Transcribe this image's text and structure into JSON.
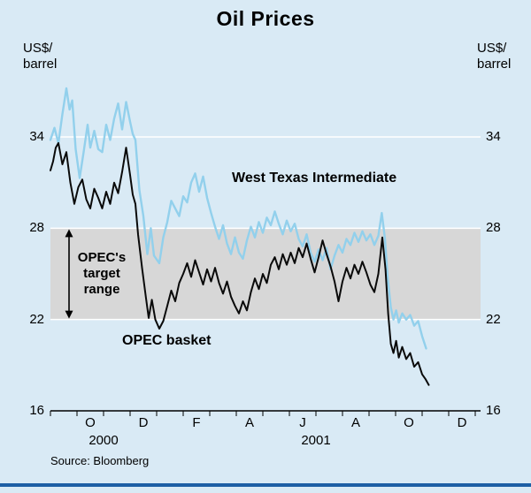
{
  "page": {
    "title": "Oil Prices",
    "axis_unit_lines": [
      "US$/",
      "barrel"
    ],
    "source": "Source: Bloomberg"
  },
  "annotations": {
    "wti": "West Texas Intermediate",
    "opec_basket": "OPEC basket",
    "target_range_lines": [
      "OPEC's",
      "target",
      "range"
    ]
  },
  "colors": {
    "background": "#d9eaf5",
    "band": "#d7d7d7",
    "gridline": "#ffffff",
    "axis": "#000000",
    "wti_line": "#92d0ec",
    "opec_line": "#0a0a0a",
    "bottom_bar": "#1d5fa5"
  },
  "chart_data": {
    "type": "line",
    "title": "Oil Prices",
    "ylabel": "US$/barrel",
    "ylim": [
      16,
      39.4
    ],
    "yticks": [
      16,
      22,
      28,
      34
    ],
    "grid": "horizontal",
    "band": {
      "label": "OPEC's target range",
      "from": 22,
      "to": 28
    },
    "x_axis": {
      "note": "months, 0 = Sep 2000",
      "range": [
        0,
        16.2
      ],
      "month_tick_every": 1,
      "tick_labels": [
        {
          "label": "O",
          "t": 1.5
        },
        {
          "label": "D",
          "t": 3.5
        },
        {
          "label": "F",
          "t": 5.5
        },
        {
          "label": "A",
          "t": 7.5
        },
        {
          "label": "J",
          "t": 9.5
        },
        {
          "label": "A",
          "t": 11.5
        },
        {
          "label": "O",
          "t": 13.5
        },
        {
          "label": "D",
          "t": 15.5
        }
      ],
      "year_labels": [
        {
          "label": "2000",
          "t": 2.0
        },
        {
          "label": "2001",
          "t": 10.0
        }
      ]
    },
    "target_range_arrow": {
      "t": 0.7,
      "from": 22,
      "to": 28
    },
    "series": [
      {
        "name": "West Texas Intermediate",
        "slug": "wti-line",
        "color_key": "wti_line",
        "width": 2.4,
        "points": [
          [
            0.0,
            33.8
          ],
          [
            0.15,
            34.6
          ],
          [
            0.3,
            33.6
          ],
          [
            0.45,
            35.5
          ],
          [
            0.6,
            37.2
          ],
          [
            0.72,
            35.8
          ],
          [
            0.82,
            36.4
          ],
          [
            0.95,
            33.2
          ],
          [
            1.1,
            31.3
          ],
          [
            1.25,
            33.0
          ],
          [
            1.4,
            34.8
          ],
          [
            1.5,
            33.3
          ],
          [
            1.65,
            34.4
          ],
          [
            1.8,
            33.2
          ],
          [
            1.95,
            33.0
          ],
          [
            2.1,
            34.8
          ],
          [
            2.25,
            33.8
          ],
          [
            2.4,
            35.2
          ],
          [
            2.55,
            36.2
          ],
          [
            2.7,
            34.5
          ],
          [
            2.85,
            36.3
          ],
          [
            3.0,
            35.0
          ],
          [
            3.1,
            34.2
          ],
          [
            3.2,
            33.8
          ],
          [
            3.35,
            30.5
          ],
          [
            3.5,
            28.8
          ],
          [
            3.65,
            26.3
          ],
          [
            3.78,
            28.0
          ],
          [
            3.9,
            26.2
          ],
          [
            4.1,
            25.7
          ],
          [
            4.25,
            27.4
          ],
          [
            4.4,
            28.4
          ],
          [
            4.55,
            29.8
          ],
          [
            4.7,
            29.3
          ],
          [
            4.85,
            28.8
          ],
          [
            5.0,
            30.1
          ],
          [
            5.15,
            29.7
          ],
          [
            5.3,
            31.0
          ],
          [
            5.45,
            31.6
          ],
          [
            5.6,
            30.4
          ],
          [
            5.75,
            31.4
          ],
          [
            5.9,
            30.0
          ],
          [
            6.05,
            29.0
          ],
          [
            6.2,
            28.1
          ],
          [
            6.35,
            27.3
          ],
          [
            6.5,
            28.2
          ],
          [
            6.65,
            27.0
          ],
          [
            6.8,
            26.3
          ],
          [
            6.95,
            27.4
          ],
          [
            7.1,
            26.4
          ],
          [
            7.25,
            26.0
          ],
          [
            7.4,
            27.2
          ],
          [
            7.55,
            28.1
          ],
          [
            7.7,
            27.4
          ],
          [
            7.85,
            28.4
          ],
          [
            8.0,
            27.7
          ],
          [
            8.15,
            28.7
          ],
          [
            8.3,
            28.2
          ],
          [
            8.45,
            29.1
          ],
          [
            8.6,
            28.3
          ],
          [
            8.75,
            27.6
          ],
          [
            8.9,
            28.5
          ],
          [
            9.05,
            27.8
          ],
          [
            9.2,
            28.3
          ],
          [
            9.35,
            27.3
          ],
          [
            9.5,
            26.8
          ],
          [
            9.65,
            27.6
          ],
          [
            9.8,
            26.4
          ],
          [
            9.95,
            25.8
          ],
          [
            10.1,
            26.6
          ],
          [
            10.25,
            25.9
          ],
          [
            10.4,
            26.7
          ],
          [
            10.55,
            25.3
          ],
          [
            10.7,
            26.2
          ],
          [
            10.85,
            26.9
          ],
          [
            11.0,
            26.4
          ],
          [
            11.15,
            27.3
          ],
          [
            11.3,
            26.9
          ],
          [
            11.45,
            27.7
          ],
          [
            11.6,
            27.1
          ],
          [
            11.75,
            27.8
          ],
          [
            11.9,
            27.2
          ],
          [
            12.05,
            27.6
          ],
          [
            12.2,
            26.9
          ],
          [
            12.35,
            27.5
          ],
          [
            12.48,
            29.0
          ],
          [
            12.6,
            27.3
          ],
          [
            12.7,
            24.8
          ],
          [
            12.82,
            22.8
          ],
          [
            12.92,
            22.0
          ],
          [
            13.02,
            22.6
          ],
          [
            13.12,
            21.8
          ],
          [
            13.25,
            22.4
          ],
          [
            13.4,
            22.0
          ],
          [
            13.55,
            22.3
          ],
          [
            13.7,
            21.6
          ],
          [
            13.85,
            21.9
          ],
          [
            14.0,
            20.9
          ],
          [
            14.15,
            20.1
          ]
        ]
      },
      {
        "name": "OPEC basket",
        "slug": "opec-basket-line",
        "color_key": "opec_line",
        "width": 2.0,
        "points": [
          [
            0.0,
            31.8
          ],
          [
            0.1,
            32.4
          ],
          [
            0.2,
            33.3
          ],
          [
            0.3,
            33.6
          ],
          [
            0.45,
            32.2
          ],
          [
            0.6,
            33.0
          ],
          [
            0.75,
            31.0
          ],
          [
            0.9,
            29.6
          ],
          [
            1.05,
            30.7
          ],
          [
            1.2,
            31.2
          ],
          [
            1.35,
            29.9
          ],
          [
            1.5,
            29.3
          ],
          [
            1.65,
            30.6
          ],
          [
            1.8,
            30.0
          ],
          [
            1.95,
            29.3
          ],
          [
            2.1,
            30.4
          ],
          [
            2.25,
            29.6
          ],
          [
            2.4,
            31.0
          ],
          [
            2.55,
            30.3
          ],
          [
            2.7,
            31.7
          ],
          [
            2.85,
            33.3
          ],
          [
            3.0,
            31.5
          ],
          [
            3.1,
            30.2
          ],
          [
            3.2,
            29.6
          ],
          [
            3.3,
            27.6
          ],
          [
            3.45,
            25.4
          ],
          [
            3.6,
            23.4
          ],
          [
            3.7,
            22.1
          ],
          [
            3.82,
            23.3
          ],
          [
            3.95,
            22.0
          ],
          [
            4.1,
            21.4
          ],
          [
            4.25,
            21.9
          ],
          [
            4.4,
            22.9
          ],
          [
            4.55,
            23.9
          ],
          [
            4.7,
            23.2
          ],
          [
            4.85,
            24.4
          ],
          [
            5.0,
            25.0
          ],
          [
            5.15,
            25.7
          ],
          [
            5.3,
            24.8
          ],
          [
            5.45,
            25.9
          ],
          [
            5.6,
            25.1
          ],
          [
            5.75,
            24.3
          ],
          [
            5.9,
            25.3
          ],
          [
            6.05,
            24.5
          ],
          [
            6.2,
            25.4
          ],
          [
            6.35,
            24.4
          ],
          [
            6.5,
            23.7
          ],
          [
            6.65,
            24.5
          ],
          [
            6.8,
            23.5
          ],
          [
            6.95,
            22.9
          ],
          [
            7.1,
            22.4
          ],
          [
            7.25,
            23.2
          ],
          [
            7.4,
            22.6
          ],
          [
            7.55,
            23.8
          ],
          [
            7.7,
            24.7
          ],
          [
            7.85,
            24.0
          ],
          [
            8.0,
            25.0
          ],
          [
            8.15,
            24.4
          ],
          [
            8.3,
            25.6
          ],
          [
            8.45,
            26.1
          ],
          [
            8.6,
            25.3
          ],
          [
            8.75,
            26.3
          ],
          [
            8.9,
            25.6
          ],
          [
            9.05,
            26.4
          ],
          [
            9.2,
            25.7
          ],
          [
            9.35,
            26.7
          ],
          [
            9.5,
            26.1
          ],
          [
            9.65,
            27.0
          ],
          [
            9.8,
            26.0
          ],
          [
            9.95,
            25.1
          ],
          [
            10.1,
            26.1
          ],
          [
            10.25,
            27.2
          ],
          [
            10.4,
            26.3
          ],
          [
            10.55,
            25.5
          ],
          [
            10.7,
            24.5
          ],
          [
            10.85,
            23.2
          ],
          [
            11.0,
            24.5
          ],
          [
            11.15,
            25.4
          ],
          [
            11.3,
            24.7
          ],
          [
            11.45,
            25.6
          ],
          [
            11.6,
            25.0
          ],
          [
            11.75,
            25.8
          ],
          [
            11.9,
            25.1
          ],
          [
            12.05,
            24.3
          ],
          [
            12.2,
            23.8
          ],
          [
            12.35,
            25.0
          ],
          [
            12.5,
            27.4
          ],
          [
            12.62,
            25.3
          ],
          [
            12.72,
            22.4
          ],
          [
            12.82,
            20.4
          ],
          [
            12.92,
            19.8
          ],
          [
            13.02,
            20.6
          ],
          [
            13.12,
            19.5
          ],
          [
            13.25,
            20.2
          ],
          [
            13.4,
            19.4
          ],
          [
            13.55,
            19.8
          ],
          [
            13.7,
            18.9
          ],
          [
            13.85,
            19.2
          ],
          [
            14.0,
            18.4
          ],
          [
            14.12,
            18.1
          ],
          [
            14.25,
            17.7
          ]
        ]
      }
    ]
  }
}
